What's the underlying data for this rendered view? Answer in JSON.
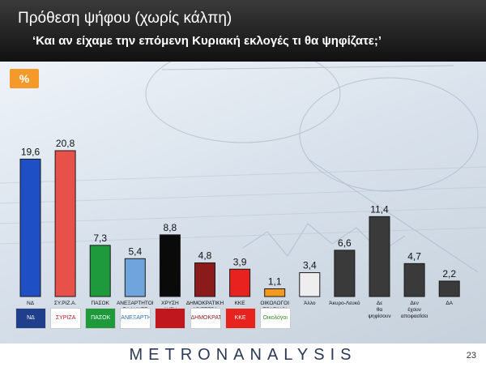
{
  "header": {
    "title": "Πρόθεση ψήφου (χωρίς κάλπη)",
    "subtitle": "‘Και αν είχαμε την επόμενη Κυριακή εκλογές τι θα ψηφίζατε;’"
  },
  "badge": "%",
  "chart_data": {
    "type": "bar",
    "categories": [
      "ΝΔ",
      "ΣΥ.ΡΙΖ.Α.",
      "ΠΑΣΟΚ",
      "ΑΝΕΞΑΡΤΗΤΟΙ ΕΛΛΗΝΕΣ",
      "ΧΡΥΣΗ ΑΥΓΗ",
      "ΔΗΜΟΚΡΑΤΙΚΗ ΑΡΙΣΤΕΡΑ",
      "ΚΚΕ",
      "ΟΙΚΟΛΟΓΟΙ ΠΡΑΣΙΝΟΙ",
      "Άλλο",
      "Άκυρο-Λευκό",
      "Δε θα ψηφίσουν",
      "Δεν έχουν αποφασίσει",
      "ΔΑ"
    ],
    "values": [
      19.6,
      20.8,
      7.3,
      5.4,
      8.8,
      4.8,
      3.9,
      1.1,
      3.4,
      6.6,
      11.4,
      4.7,
      2.2
    ],
    "value_labels": [
      "19,6",
      "20,8",
      "7,3",
      "5,4",
      "8,8",
      "4,8",
      "3,9",
      "1,1",
      "3,4",
      "6,6",
      "11,4",
      "4,7",
      "2,2"
    ],
    "colors": [
      "#1f4fc4",
      "#e8514a",
      "#1e9a3c",
      "#6fa5dc",
      "#0a0a0a",
      "#8b1a1a",
      "#e8221f",
      "#f39a1e",
      "#eeeeee",
      "#3a3a3a",
      "#3a3a3a",
      "#3a3a3a",
      "#3a3a3a"
    ],
    "ylim": [
      0,
      22
    ]
  },
  "logos": [
    {
      "text": "ΝΔ",
      "color": "#1f3f8c",
      "bg": "#1f3f8c",
      "fg": "#ffffff"
    },
    {
      "text": "ΣΥΡΙΖΑ",
      "color": "#c0161e",
      "bg": "#ffffff",
      "fg": "#c0161e"
    },
    {
      "text": "ΠΑΣΟΚ",
      "color": "#1e9a3c",
      "bg": "#1e9a3c",
      "fg": "#ffffff"
    },
    {
      "text": "ΑΝΕΞΑΡΤΗΤΟΙ ΕΛΛΗΝΕΣ",
      "color": "#2a6fb5",
      "bg": "#ffffff",
      "fg": "#2a6fb5"
    },
    {
      "text": "",
      "color": "#c0161e",
      "bg": "#c0161e",
      "fg": "#ffffff"
    },
    {
      "text": "ΔΗΜΟΚΡΑΤΙΚΗ ΑΡΙΣΤΕΡΑ",
      "color": "#8b1a1a",
      "bg": "#ffffff",
      "fg": "#8b1a1a"
    },
    {
      "text": "ΚΚΕ",
      "color": "#e8221f",
      "bg": "#e8221f",
      "fg": "#ffffff"
    },
    {
      "text": "Οικολόγοι Πράσινοι",
      "color": "#3a8a2a",
      "bg": "#ffffff",
      "fg": "#3a8a2a"
    }
  ],
  "footer": {
    "brand": "METRONANALYSIS",
    "page": "23"
  }
}
